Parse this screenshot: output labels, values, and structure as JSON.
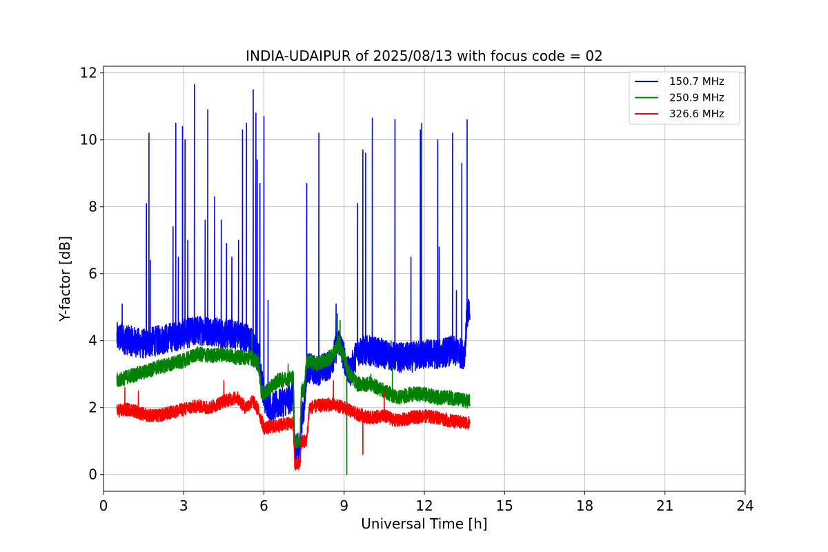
{
  "chart_data": {
    "type": "line",
    "title": "INDIA-UDAIPUR of 2025/08/13 with focus code = 02",
    "xlabel": "Universal Time [h]",
    "ylabel": "Y-factor [dB]",
    "xlim": [
      0,
      24
    ],
    "ylim": [
      -0.5,
      12.2
    ],
    "xticks": [
      0,
      3,
      6,
      9,
      12,
      15,
      18,
      21,
      24
    ],
    "yticks": [
      0,
      2,
      4,
      6,
      8,
      10,
      12
    ],
    "grid": true,
    "legend_position": "top-right",
    "series": [
      {
        "name": "150.7 MHz",
        "color": "#0000ff",
        "baseline": [
          [
            0.5,
            4.1
          ],
          [
            1.0,
            4.0
          ],
          [
            1.5,
            3.9
          ],
          [
            2.0,
            4.0
          ],
          [
            2.5,
            4.1
          ],
          [
            3.0,
            4.2
          ],
          [
            3.5,
            4.3
          ],
          [
            4.0,
            4.3
          ],
          [
            4.5,
            4.2
          ],
          [
            5.0,
            4.2
          ],
          [
            5.5,
            4.0
          ],
          [
            5.8,
            3.5
          ],
          [
            6.0,
            2.3
          ],
          [
            6.3,
            2.0
          ],
          [
            6.8,
            2.2
          ],
          [
            7.1,
            2.3
          ],
          [
            7.15,
            0.8
          ],
          [
            7.35,
            0.8
          ],
          [
            7.4,
            1.6
          ],
          [
            7.5,
            2.0
          ],
          [
            7.6,
            3.2
          ],
          [
            8.0,
            3.1
          ],
          [
            8.5,
            3.3
          ],
          [
            8.8,
            4.0
          ],
          [
            9.0,
            3.5
          ],
          [
            9.2,
            3.0
          ],
          [
            9.5,
            3.7
          ],
          [
            10.0,
            3.7
          ],
          [
            10.5,
            3.6
          ],
          [
            11.0,
            3.5
          ],
          [
            11.5,
            3.5
          ],
          [
            12.0,
            3.6
          ],
          [
            12.5,
            3.6
          ],
          [
            13.0,
            3.7
          ],
          [
            13.5,
            3.6
          ],
          [
            13.6,
            4.8
          ],
          [
            13.7,
            4.8
          ]
        ],
        "noise": 0.45,
        "spikes": [
          [
            0.7,
            5.1
          ],
          [
            1.6,
            8.1
          ],
          [
            1.7,
            10.2
          ],
          [
            1.75,
            6.4
          ],
          [
            2.6,
            7.4
          ],
          [
            2.7,
            10.5
          ],
          [
            2.8,
            6.5
          ],
          [
            2.95,
            10.4
          ],
          [
            3.05,
            10.0
          ],
          [
            3.15,
            7.0
          ],
          [
            3.4,
            11.65
          ],
          [
            3.8,
            7.6
          ],
          [
            3.9,
            10.9
          ],
          [
            4.15,
            8.3
          ],
          [
            4.4,
            7.6
          ],
          [
            4.6,
            6.9
          ],
          [
            4.8,
            6.5
          ],
          [
            5.05,
            7.0
          ],
          [
            5.2,
            10.3
          ],
          [
            5.35,
            10.5
          ],
          [
            5.6,
            11.5
          ],
          [
            5.7,
            10.8
          ],
          [
            5.75,
            9.4
          ],
          [
            5.85,
            8.7
          ],
          [
            6.0,
            10.7
          ],
          [
            6.15,
            5.2
          ],
          [
            7.6,
            8.7
          ],
          [
            8.05,
            10.2
          ],
          [
            8.7,
            5.1
          ],
          [
            9.5,
            8.1
          ],
          [
            9.7,
            9.7
          ],
          [
            9.8,
            9.6
          ],
          [
            10.05,
            10.65
          ],
          [
            10.9,
            10.6
          ],
          [
            11.5,
            6.5
          ],
          [
            11.85,
            10.3
          ],
          [
            11.9,
            10.5
          ],
          [
            12.5,
            10.0
          ],
          [
            12.55,
            6.8
          ],
          [
            13.05,
            10.2
          ],
          [
            13.2,
            5.5
          ],
          [
            13.4,
            9.3
          ],
          [
            13.6,
            10.6
          ]
        ]
      },
      {
        "name": "250.9 MHz",
        "color": "#008000",
        "baseline": [
          [
            0.5,
            2.8
          ],
          [
            1.0,
            2.95
          ],
          [
            1.5,
            3.05
          ],
          [
            2.0,
            3.2
          ],
          [
            2.5,
            3.3
          ],
          [
            3.0,
            3.4
          ],
          [
            3.5,
            3.6
          ],
          [
            4.0,
            3.55
          ],
          [
            4.5,
            3.6
          ],
          [
            5.0,
            3.5
          ],
          [
            5.5,
            3.5
          ],
          [
            5.8,
            3.3
          ],
          [
            5.9,
            2.5
          ],
          [
            6.0,
            2.4
          ],
          [
            6.5,
            2.8
          ],
          [
            7.1,
            2.9
          ],
          [
            7.15,
            1.0
          ],
          [
            7.35,
            1.0
          ],
          [
            7.4,
            2.5
          ],
          [
            7.5,
            2.5
          ],
          [
            7.6,
            3.4
          ],
          [
            8.0,
            3.3
          ],
          [
            8.5,
            3.5
          ],
          [
            8.8,
            3.9
          ],
          [
            9.0,
            3.5
          ],
          [
            9.2,
            3.0
          ],
          [
            9.5,
            2.7
          ],
          [
            10.0,
            2.7
          ],
          [
            10.5,
            2.5
          ],
          [
            11.0,
            2.3
          ],
          [
            11.5,
            2.4
          ],
          [
            12.0,
            2.4
          ],
          [
            12.5,
            2.3
          ],
          [
            13.0,
            2.3
          ],
          [
            13.5,
            2.2
          ],
          [
            13.7,
            2.2
          ]
        ],
        "noise": 0.22,
        "spikes": [
          [
            5.55,
            4.3
          ],
          [
            5.75,
            3.6
          ],
          [
            6.9,
            3.3
          ],
          [
            8.75,
            4.8
          ],
          [
            8.85,
            4.6
          ],
          [
            9.1,
            0.0
          ],
          [
            10.0,
            3.0
          ],
          [
            10.8,
            3.2
          ]
        ]
      },
      {
        "name": "326.6 MHz",
        "color": "#ff0000",
        "baseline": [
          [
            0.5,
            1.9
          ],
          [
            1.0,
            1.95
          ],
          [
            1.5,
            1.8
          ],
          [
            2.0,
            1.75
          ],
          [
            2.5,
            1.85
          ],
          [
            3.0,
            1.95
          ],
          [
            3.5,
            2.05
          ],
          [
            4.0,
            2.0
          ],
          [
            4.5,
            2.2
          ],
          [
            5.0,
            2.3
          ],
          [
            5.3,
            2.0
          ],
          [
            5.6,
            2.2
          ],
          [
            5.8,
            1.9
          ],
          [
            6.0,
            1.4
          ],
          [
            6.5,
            1.45
          ],
          [
            7.0,
            1.55
          ],
          [
            7.1,
            1.5
          ],
          [
            7.15,
            0.3
          ],
          [
            7.35,
            0.3
          ],
          [
            7.4,
            1.0
          ],
          [
            7.6,
            1.0
          ],
          [
            7.7,
            2.0
          ],
          [
            8.0,
            2.05
          ],
          [
            8.5,
            2.1
          ],
          [
            9.0,
            2.0
          ],
          [
            9.5,
            1.8
          ],
          [
            10.0,
            1.7
          ],
          [
            10.5,
            1.75
          ],
          [
            11.0,
            1.6
          ],
          [
            11.5,
            1.7
          ],
          [
            12.0,
            1.75
          ],
          [
            12.5,
            1.7
          ],
          [
            13.0,
            1.6
          ],
          [
            13.5,
            1.55
          ],
          [
            13.7,
            1.55
          ]
        ],
        "noise": 0.2,
        "spikes": [
          [
            0.8,
            2.6
          ],
          [
            1.3,
            2.5
          ],
          [
            4.5,
            2.8
          ],
          [
            8.6,
            2.8
          ],
          [
            9.7,
            0.6
          ],
          [
            10.5,
            2.5
          ]
        ]
      }
    ]
  }
}
